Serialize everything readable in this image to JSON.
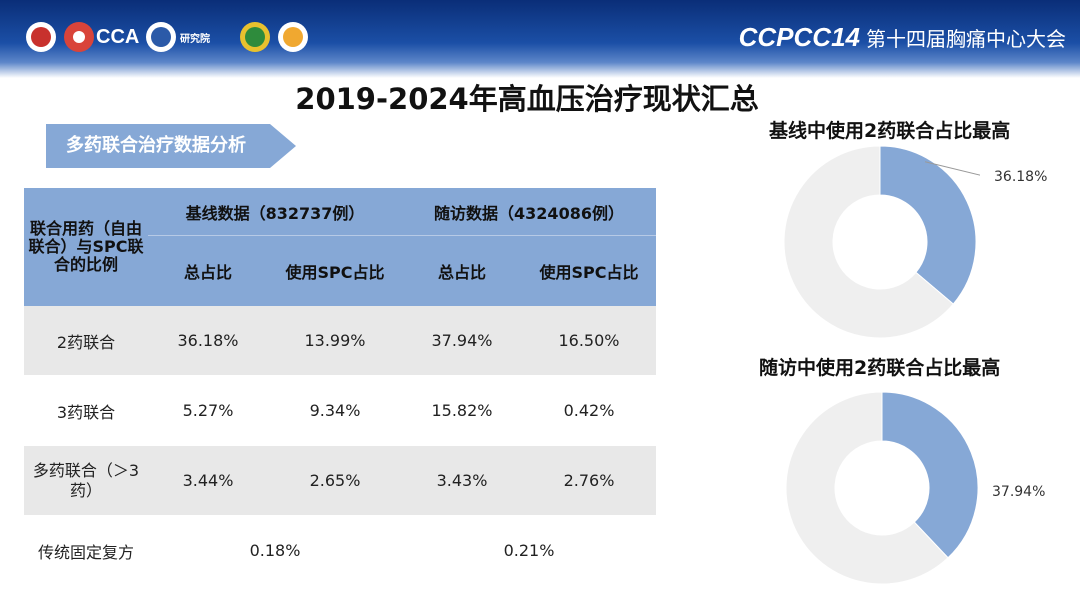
{
  "header": {
    "logo_cca_text": "CCA",
    "logo_institute_text": "研究院",
    "congress_badge": "CCPCC14",
    "congress_title": "第十四届胸痛中心大会"
  },
  "page_title": "2019-2024年高血压治疗现状汇总",
  "section_banner": "多药联合治疗数据分析",
  "table": {
    "corner_header": "联合用药（自由联合）与SPC联合的比例",
    "group_headers": [
      "基线数据（832737例）",
      "随访数据（4324086例）"
    ],
    "sub_headers": [
      "总占比",
      "使用SPC占比",
      "总占比",
      "使用SPC占比"
    ],
    "rows": [
      {
        "label": "2药联合",
        "values": [
          "36.18%",
          "13.99%",
          "37.94%",
          "16.50%"
        ]
      },
      {
        "label": "3药联合",
        "values": [
          "5.27%",
          "9.34%",
          "15.82%",
          "0.42%"
        ]
      },
      {
        "label": "多药联合（＞3药）",
        "values": [
          "3.44%",
          "2.65%",
          "3.43%",
          "2.76%"
        ]
      }
    ],
    "last_row": {
      "label": "传统固定复方",
      "values": [
        "0.18%",
        "0.21%"
      ]
    }
  },
  "chart_data": [
    {
      "type": "pie",
      "title": "基线中使用2药联合占比最高",
      "slices": [
        {
          "label": "36.18%",
          "value": 36.18,
          "color": "#86a8d6"
        },
        {
          "label": "",
          "value": 63.82,
          "color": "#efefef"
        }
      ]
    },
    {
      "type": "pie",
      "title": "随访中使用2药联合占比最高",
      "slices": [
        {
          "label": "37.94%",
          "value": 37.94,
          "color": "#86a8d6"
        },
        {
          "label": "",
          "value": 62.06,
          "color": "#efefef"
        }
      ]
    }
  ],
  "colors": {
    "accent": "#86a8d6",
    "header_dark": "#0a2e78",
    "row_gray": "#e8e8e8"
  }
}
